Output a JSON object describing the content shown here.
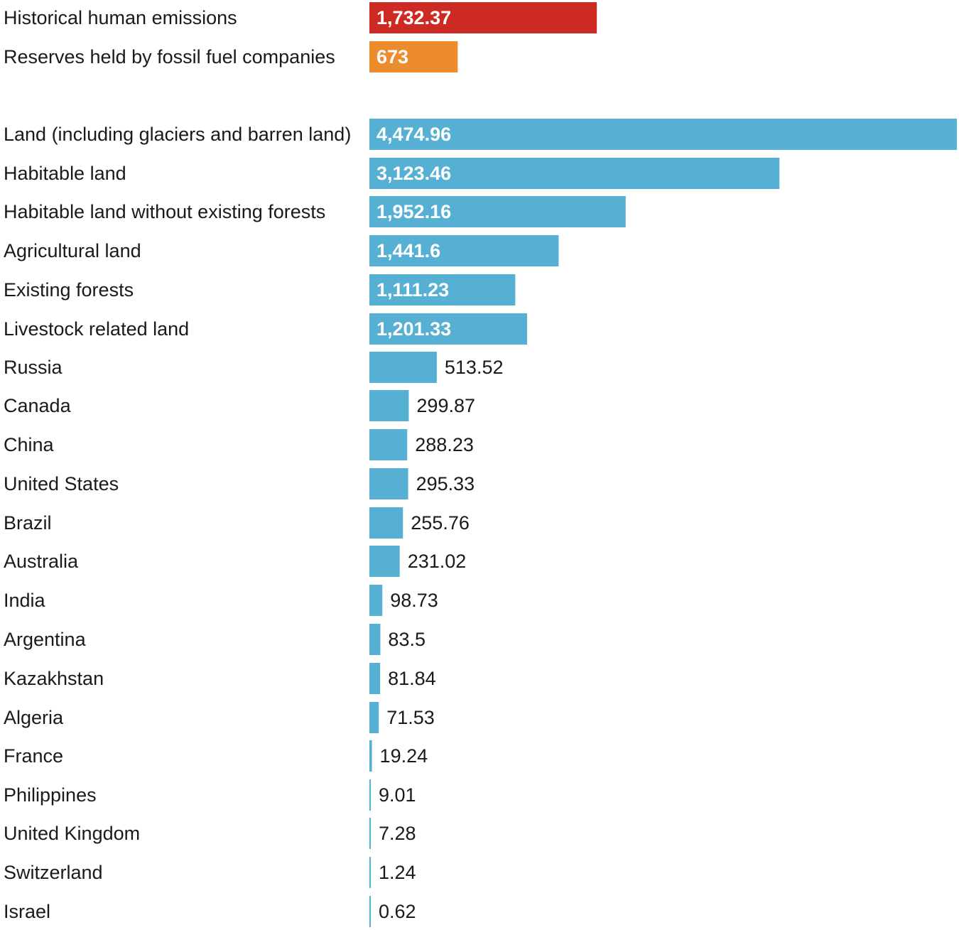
{
  "chart_data": {
    "type": "bar",
    "orientation": "horizontal",
    "title": "",
    "xlabel": "",
    "ylabel": "",
    "grid": false,
    "legend": "none",
    "colors": {
      "emissions": "#cc2a22",
      "reserves": "#ec8c2c",
      "land": "#55b0d3"
    },
    "categories": [
      "Historical human emissions",
      "Reserves held by fossil fuel companies",
      "Land (including glaciers and barren land)",
      "Habitable land",
      "Habitable land without existing forests",
      "Agricultural land",
      "Existing forests",
      "Livestock related land",
      "Russia",
      "Canada",
      "China",
      "United States",
      "Brazil",
      "Australia",
      "India",
      "Argentina",
      "Kazakhstan",
      "Algeria",
      "France",
      "Philippines",
      "United Kingdom",
      "Switzerland",
      "Israel"
    ],
    "values": [
      1732.37,
      673,
      4474.96,
      3123.46,
      1952.16,
      1441.6,
      1111.23,
      1201.33,
      513.52,
      299.87,
      288.23,
      295.33,
      255.76,
      231.02,
      98.73,
      83.5,
      81.84,
      71.53,
      19.24,
      9.01,
      7.28,
      1.24,
      0.62
    ],
    "value_labels": [
      "1,732.37",
      "673",
      "4,474.96",
      "3,123.46",
      "1,952.16",
      "1,441.6",
      "1,111.23",
      "1,201.33",
      "513.52",
      "299.87",
      "288.23",
      "295.33",
      "255.76",
      "231.02",
      "98.73",
      "83.5",
      "81.84",
      "71.53",
      "19.24",
      "9.01",
      "7.28",
      "1.24",
      "0.62"
    ],
    "bar_colors": [
      "emissions",
      "reserves",
      "land",
      "land",
      "land",
      "land",
      "land",
      "land",
      "land",
      "land",
      "land",
      "land",
      "land",
      "land",
      "land",
      "land",
      "land",
      "land",
      "land",
      "land",
      "land",
      "land",
      "land"
    ],
    "xlim": [
      0,
      4474.96
    ]
  }
}
